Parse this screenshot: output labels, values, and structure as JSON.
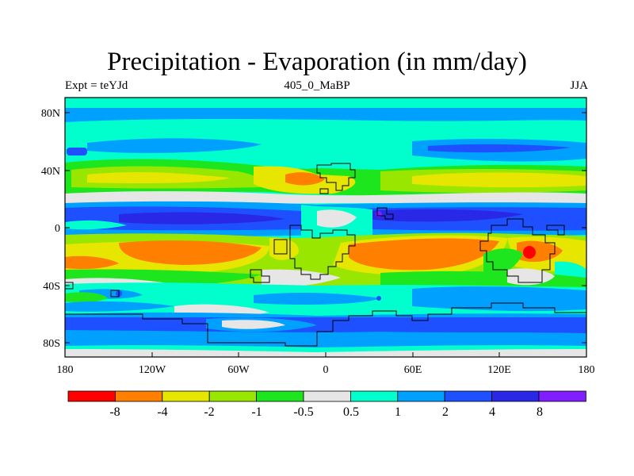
{
  "title": "Precipitation - Evaporation (in mm/day)",
  "subtitle_left": "Expt = teYJd",
  "subtitle_center": "405_0_MaBP",
  "subtitle_right": "JJA",
  "y_ticks": [
    "80N",
    "40N",
    "0",
    "40S",
    "80S"
  ],
  "x_ticks": [
    "180",
    "120W",
    "60W",
    "0",
    "60E",
    "120E",
    "180"
  ],
  "colorbar": {
    "colors": [
      "#ff0000",
      "#ff8000",
      "#e6e600",
      "#99e600",
      "#1ee61e",
      "#e6e6e6",
      "#00ffcc",
      "#00a0ff",
      "#1e50ff",
      "#2828e6",
      "#7f1eff"
    ],
    "labels": [
      "-8",
      "-4",
      "-2",
      "-1",
      "-0.5",
      "0.5",
      "1",
      "2",
      "4",
      "8"
    ]
  }
}
